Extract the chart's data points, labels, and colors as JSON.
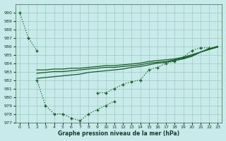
{
  "title": "Graphe pression niveau de la mer (hPa)",
  "bg_color": "#c8eaea",
  "grid_color": "#99ccbb",
  "line_color": "#1a5c28",
  "ylim": [
    977,
    991
  ],
  "xlim": [
    -0.5,
    23.5
  ],
  "yticks": [
    977,
    978,
    979,
    980,
    981,
    982,
    983,
    984,
    985,
    986,
    987,
    988,
    989,
    990
  ],
  "xticks": [
    0,
    1,
    2,
    3,
    4,
    5,
    6,
    7,
    8,
    9,
    10,
    11,
    12,
    13,
    14,
    15,
    16,
    17,
    18,
    19,
    20,
    21,
    22,
    23
  ],
  "steep_line": {
    "x": [
      0,
      1,
      2
    ],
    "y": [
      990.0,
      987.0,
      985.5
    ]
  },
  "bottom_curve": {
    "x": [
      2,
      3,
      4,
      5,
      6,
      7,
      8,
      9,
      10,
      11
    ],
    "y": [
      982.0,
      979.0,
      978.0,
      978.0,
      977.5,
      977.2,
      978.0,
      978.5,
      979.0,
      979.5
    ]
  },
  "right_curve": {
    "x": [
      9,
      10,
      11,
      12,
      13,
      14,
      15,
      16,
      17,
      18,
      19,
      20,
      21,
      22
    ],
    "y": [
      980.5,
      980.5,
      981.0,
      981.5,
      981.8,
      982.0,
      983.2,
      983.5,
      984.0,
      984.2,
      984.7,
      985.5,
      985.8,
      985.8
    ]
  },
  "flat_line1": {
    "x": [
      2,
      3,
      4,
      5,
      6,
      7,
      8,
      9,
      10,
      11,
      12,
      13,
      14,
      15,
      16,
      17,
      18,
      19,
      20,
      21,
      22,
      23
    ],
    "y": [
      982.2,
      982.3,
      982.4,
      982.5,
      982.6,
      982.7,
      982.9,
      983.0,
      983.1,
      983.2,
      983.3,
      983.5,
      983.6,
      983.8,
      984.0,
      984.1,
      984.3,
      984.5,
      984.8,
      985.3,
      985.7,
      985.9
    ]
  },
  "flat_line2": {
    "x": [
      2,
      3,
      4,
      5,
      6,
      7,
      8,
      9,
      10,
      11,
      12,
      13,
      14,
      15,
      16,
      17,
      18,
      19,
      20,
      21,
      22,
      23
    ],
    "y": [
      982.8,
      982.9,
      983.0,
      983.0,
      983.1,
      983.2,
      983.3,
      983.4,
      983.5,
      983.5,
      983.6,
      983.7,
      983.8,
      984.0,
      984.1,
      984.2,
      984.4,
      984.6,
      984.9,
      985.3,
      985.6,
      985.9
    ]
  },
  "flat_line3": {
    "x": [
      2,
      3,
      4,
      5,
      6,
      7,
      8,
      9,
      10,
      11,
      12,
      13,
      14,
      15,
      16,
      17,
      18,
      19,
      20,
      21,
      22,
      23
    ],
    "y": [
      983.2,
      983.2,
      983.3,
      983.3,
      983.4,
      983.4,
      983.5,
      983.6,
      983.7,
      983.7,
      983.8,
      983.9,
      984.0,
      984.2,
      984.3,
      984.4,
      984.5,
      984.7,
      985.0,
      985.3,
      985.7,
      986.0
    ]
  }
}
